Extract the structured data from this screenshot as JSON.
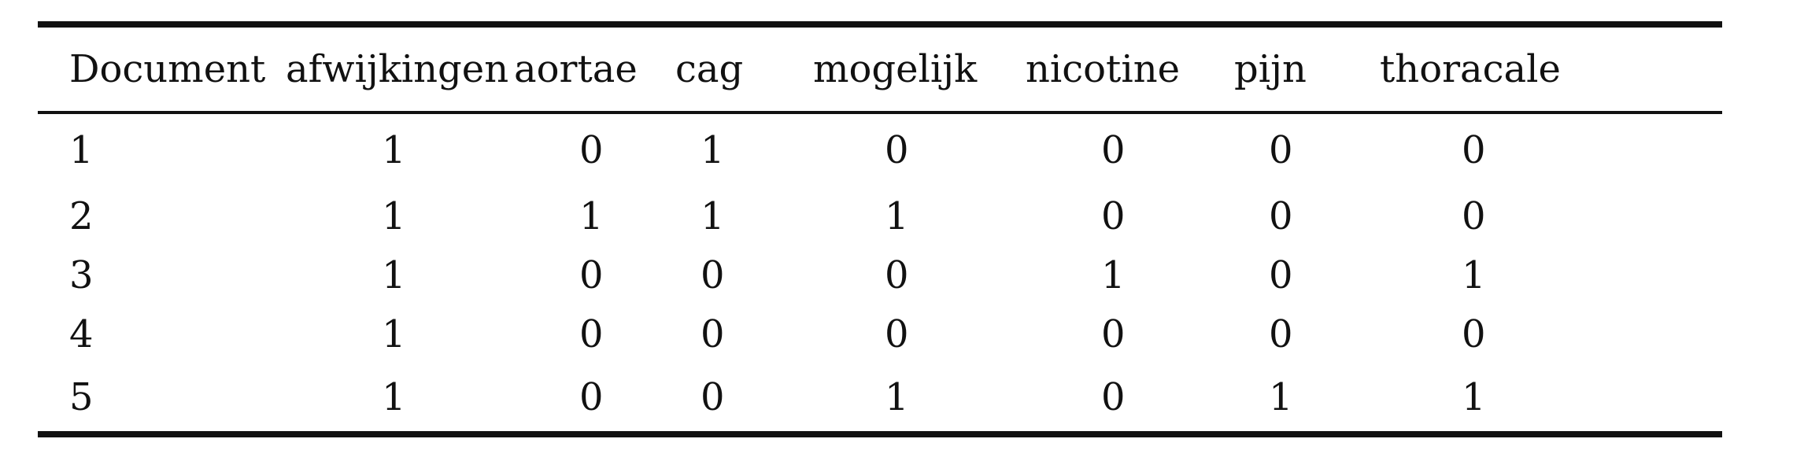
{
  "table": {
    "columns": [
      "Document",
      "afwijkingen",
      "aortae",
      "cag",
      "mogelijk",
      "nicotine",
      "pijn",
      "thoracale"
    ],
    "rows": [
      [
        "1",
        "1",
        "0",
        "1",
        "0",
        "0",
        "0",
        "0"
      ],
      [
        "2",
        "1",
        "1",
        "1",
        "1",
        "0",
        "0",
        "0"
      ],
      [
        "3",
        "1",
        "0",
        "0",
        "0",
        "1",
        "0",
        "1"
      ],
      [
        "4",
        "1",
        "0",
        "0",
        "0",
        "0",
        "0",
        "0"
      ],
      [
        "5",
        "1",
        "0",
        "0",
        "1",
        "0",
        "1",
        "1"
      ]
    ]
  }
}
